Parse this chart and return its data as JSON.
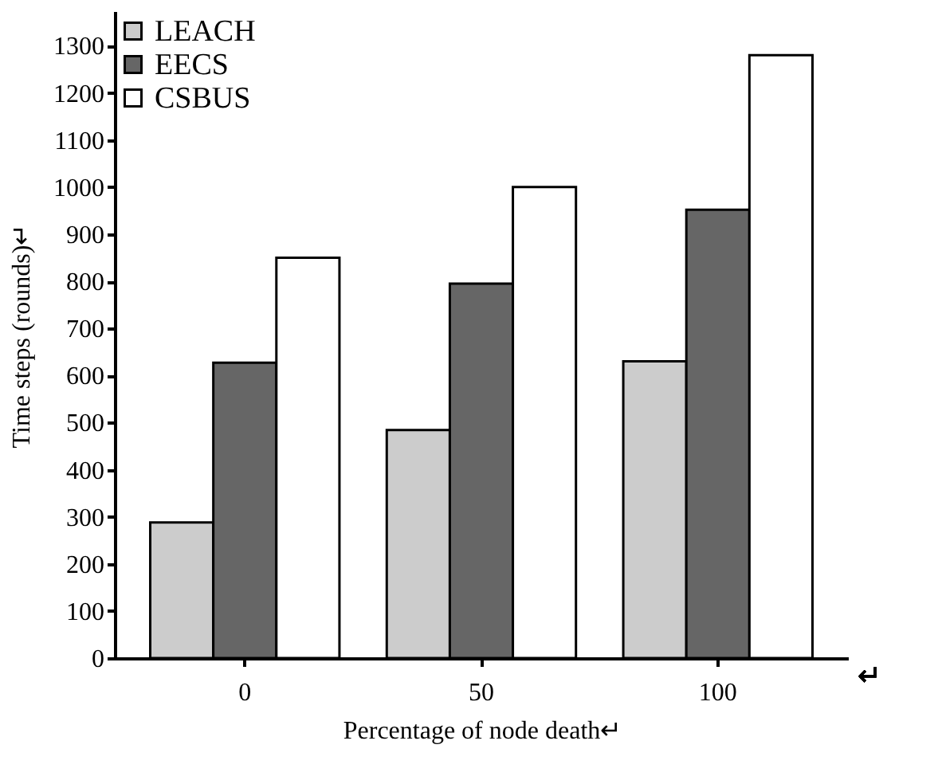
{
  "chart_data": {
    "type": "bar",
    "xlabel": "Percentage of node death↵",
    "ylabel": "Time steps (rounds)↵",
    "categories": [
      "0",
      "50",
      "100"
    ],
    "series": [
      {
        "name": "LEACH",
        "color": "#cccccc",
        "values": [
          288,
          484,
          630
        ]
      },
      {
        "name": "EECS",
        "color": "#666666",
        "values": [
          627,
          795,
          952
        ]
      },
      {
        "name": "CSBUS",
        "color": "#ffffff",
        "values": [
          850,
          1000,
          1280
        ]
      }
    ],
    "ylim": [
      0,
      1370
    ],
    "yticks": [
      0,
      100,
      200,
      300,
      400,
      500,
      600,
      700,
      800,
      900,
      1000,
      1100,
      1200,
      1300
    ],
    "grid": false,
    "legend": "top left",
    "annotations": [
      "↵"
    ]
  }
}
